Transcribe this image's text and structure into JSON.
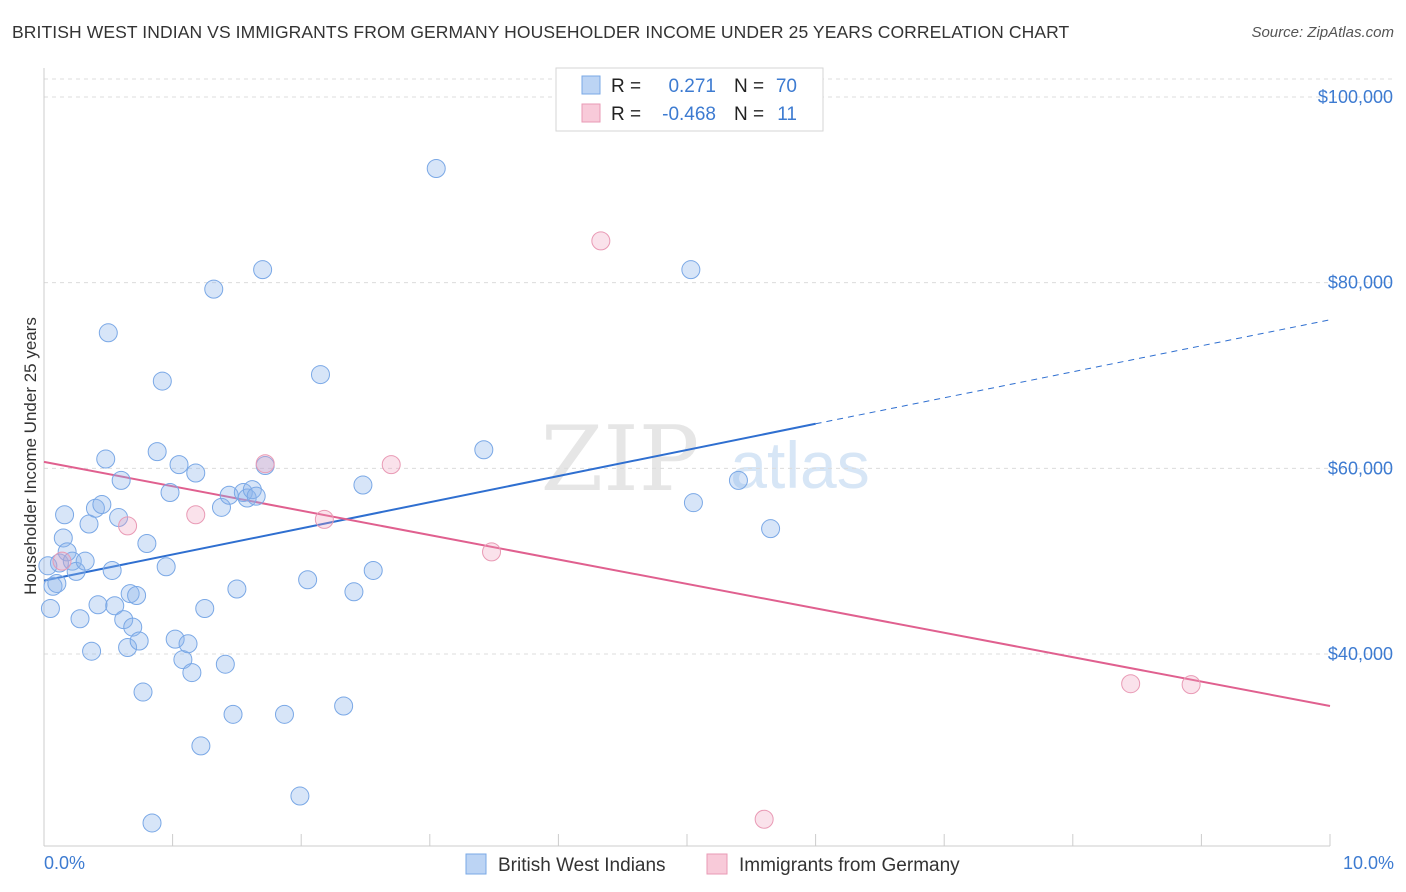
{
  "title": "BRITISH WEST INDIAN VS IMMIGRANTS FROM GERMANY HOUSEHOLDER INCOME UNDER 25 YEARS CORRELATION CHART",
  "source": "Source: ZipAtlas.com",
  "watermark": {
    "zip": "ZIP",
    "atlas": "atlas"
  },
  "colors": {
    "blue": "#7aa8e6",
    "blue_fill": "rgba(140,180,235,0.35)",
    "blue_line": "#2f6fd0",
    "pink": "#e99ab5",
    "pink_fill": "rgba(240,160,190,0.30)",
    "pink_line": "#e0608f",
    "tick_text": "#3d7bd1",
    "grid": "#dcdcdc"
  },
  "stats_box": {
    "rows": [
      {
        "series": "British West Indians",
        "r_label": "R =",
        "r_value": "0.271",
        "n_label": "N =",
        "n_value": "70"
      },
      {
        "series": "Immigrants from Germany",
        "r_label": "R =",
        "r_value": "-0.468",
        "n_label": "N =",
        "n_value": "11"
      }
    ]
  },
  "chart_data": {
    "type": "scatter",
    "title": "BRITISH WEST INDIAN VS IMMIGRANTS FROM GERMANY HOUSEHOLDER INCOME UNDER 25 YEARS CORRELATION CHART",
    "xlabel": "",
    "ylabel": "Householder Income Under 25 years",
    "xlim": [
      0,
      10
    ],
    "ylim": [
      20000,
      102000
    ],
    "x_tick_labels": [
      {
        "value": 0,
        "label": "0.0%"
      },
      {
        "value": 10,
        "label": "10.0%"
      }
    ],
    "y_ticks": [
      {
        "value": 40000,
        "label": "$40,000"
      },
      {
        "value": 60000,
        "label": "$60,000"
      },
      {
        "value": 80000,
        "label": "$80,000"
      },
      {
        "value": 100000,
        "label": "$100,000"
      }
    ],
    "grid": true,
    "legend_position": "bottom-center",
    "series": [
      {
        "name": "British West Indians",
        "color": "#7aa8e6",
        "points": [
          [
            0.05,
            44900
          ],
          [
            0.07,
            47300
          ],
          [
            0.1,
            47600
          ],
          [
            0.12,
            49800
          ],
          [
            0.15,
            52500
          ],
          [
            0.16,
            55000
          ],
          [
            0.18,
            51000
          ],
          [
            0.22,
            50000
          ],
          [
            0.25,
            48900
          ],
          [
            0.28,
            43800
          ],
          [
            0.32,
            50000
          ],
          [
            0.35,
            54000
          ],
          [
            0.37,
            40300
          ],
          [
            0.4,
            55700
          ],
          [
            0.42,
            45300
          ],
          [
            0.45,
            56100
          ],
          [
            0.48,
            61000
          ],
          [
            0.5,
            74600
          ],
          [
            0.53,
            49000
          ],
          [
            0.55,
            45200
          ],
          [
            0.58,
            54700
          ],
          [
            0.6,
            58700
          ],
          [
            0.62,
            43700
          ],
          [
            0.65,
            40700
          ],
          [
            0.67,
            46500
          ],
          [
            0.69,
            42900
          ],
          [
            0.72,
            46300
          ],
          [
            0.74,
            41400
          ],
          [
            0.77,
            35900
          ],
          [
            0.8,
            51900
          ],
          [
            0.84,
            21800
          ],
          [
            0.88,
            61800
          ],
          [
            0.92,
            69400
          ],
          [
            0.95,
            49400
          ],
          [
            0.98,
            57400
          ],
          [
            1.02,
            41600
          ],
          [
            1.05,
            60400
          ],
          [
            1.08,
            39400
          ],
          [
            1.12,
            41100
          ],
          [
            1.15,
            38000
          ],
          [
            1.18,
            59500
          ],
          [
            1.22,
            30100
          ],
          [
            1.25,
            44900
          ],
          [
            1.32,
            79300
          ],
          [
            1.38,
            55800
          ],
          [
            1.41,
            38900
          ],
          [
            1.44,
            57100
          ],
          [
            1.47,
            33500
          ],
          [
            1.5,
            47000
          ],
          [
            1.55,
            57400
          ],
          [
            1.58,
            56800
          ],
          [
            1.62,
            57700
          ],
          [
            1.65,
            57000
          ],
          [
            1.7,
            81400
          ],
          [
            1.72,
            60300
          ],
          [
            1.87,
            33500
          ],
          [
            1.99,
            24700
          ],
          [
            2.05,
            48000
          ],
          [
            2.15,
            70100
          ],
          [
            2.33,
            34400
          ],
          [
            2.41,
            46700
          ],
          [
            2.48,
            58200
          ],
          [
            2.56,
            49000
          ],
          [
            3.05,
            92300
          ],
          [
            3.42,
            62000
          ],
          [
            5.03,
            81400
          ],
          [
            5.05,
            56300
          ],
          [
            5.4,
            58700
          ],
          [
            5.65,
            53500
          ],
          [
            0.03,
            49500
          ]
        ],
        "trend": {
          "x_start": 0.0,
          "y_start": 47900,
          "x_solid_end": 6.0,
          "y_solid_end": 64800,
          "x_dash_end": 10.0,
          "y_dash_end": 76000
        }
      },
      {
        "name": "Immigrants from Germany",
        "color": "#e99ab5",
        "points": [
          [
            0.14,
            50000
          ],
          [
            0.65,
            53800
          ],
          [
            1.18,
            55000
          ],
          [
            1.72,
            60500
          ],
          [
            2.18,
            54500
          ],
          [
            2.7,
            60400
          ],
          [
            3.48,
            51000
          ],
          [
            4.33,
            84500
          ],
          [
            5.6,
            22200
          ],
          [
            8.45,
            36800
          ],
          [
            8.92,
            36700
          ]
        ],
        "trend": {
          "x_start": 0.0,
          "y_start": 60700,
          "x_end": 10.0,
          "y_end": 34400
        }
      }
    ]
  }
}
